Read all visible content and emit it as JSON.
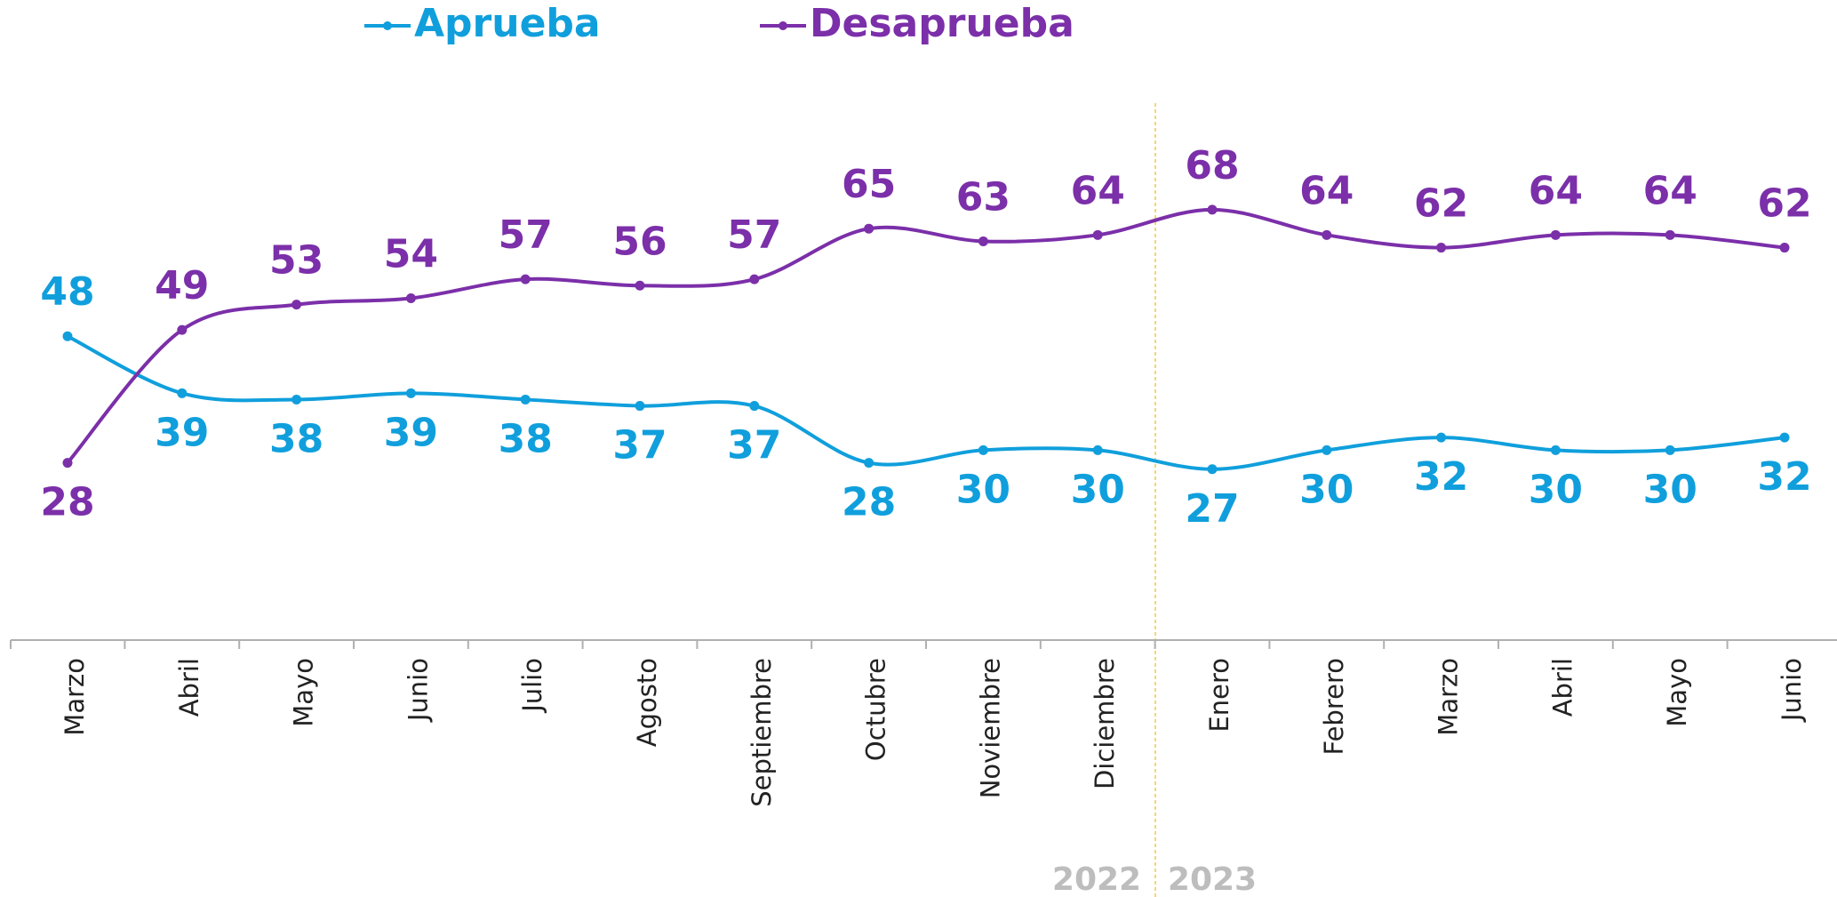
{
  "chart_data": {
    "type": "line",
    "categories": [
      "Marzo",
      "Abril",
      "Mayo",
      "Junio",
      "Julio",
      "Agosto",
      "Septiembre",
      "Octubre",
      "Noviembre",
      "Diciembre",
      "Enero",
      "Febrero",
      "Marzo",
      "Abril",
      "Mayo",
      "Junio"
    ],
    "series": [
      {
        "name": "Aprueba",
        "color": "#109fdc",
        "values": [
          48,
          39,
          38,
          39,
          38,
          37,
          37,
          28,
          30,
          30,
          27,
          30,
          32,
          30,
          30,
          32
        ]
      },
      {
        "name": "Desaprueba",
        "color": "#7b2fa9",
        "values": [
          28,
          49,
          53,
          54,
          57,
          56,
          57,
          65,
          63,
          64,
          68,
          64,
          62,
          64,
          64,
          62
        ]
      }
    ],
    "ylim": [
      0,
      100
    ],
    "annotations": [
      "2022",
      "2023"
    ]
  }
}
